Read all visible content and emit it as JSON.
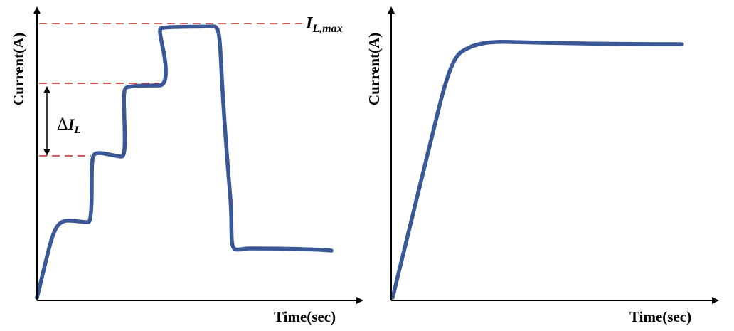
{
  "left_panel": {
    "y_axis_label": "Current(A)",
    "x_axis_label": "Time(sec)",
    "max_label": {
      "main": "I",
      "subscript": "L,max"
    },
    "step_label": {
      "delta": "Δ",
      "main": "I",
      "subscript": "L"
    }
  },
  "right_panel": {
    "y_axis_label": "Current(A)",
    "x_axis_label": "Time(sec)"
  },
  "colors": {
    "curve": "#3a5896",
    "reference_dash": "#d42020",
    "axis": "#000000"
  }
}
